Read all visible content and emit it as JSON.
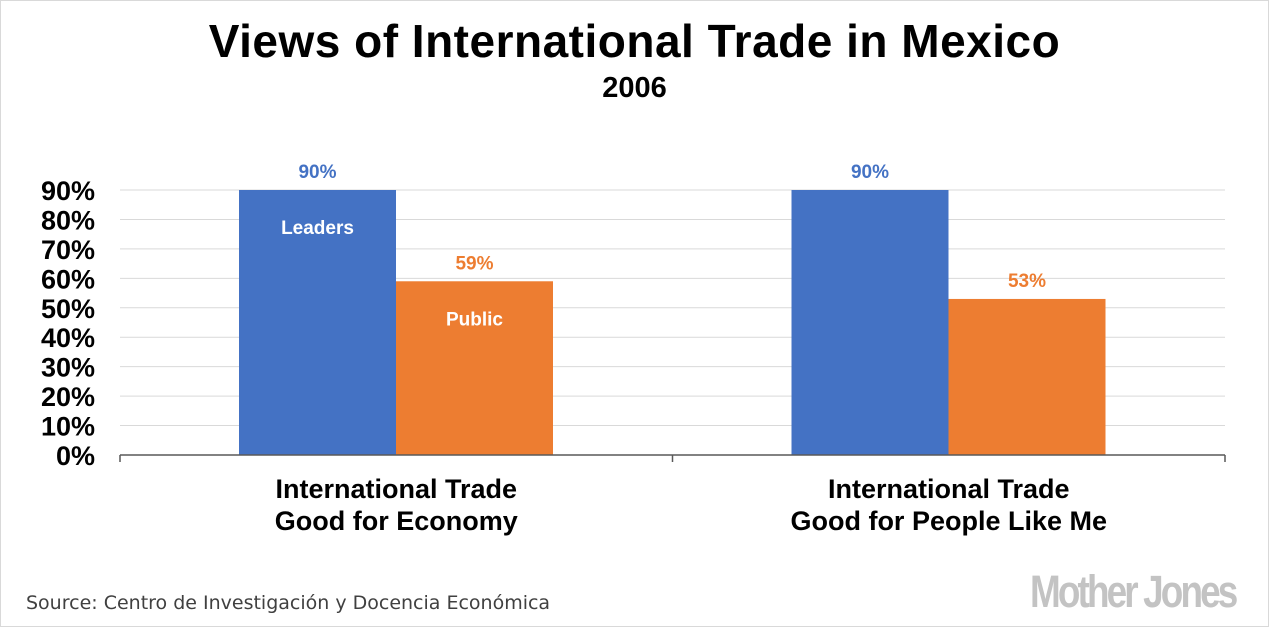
{
  "chart_data": {
    "type": "bar",
    "title": "Views of International Trade in Mexico",
    "subtitle": "2006",
    "categories": [
      [
        "International Trade",
        "Good for Economy"
      ],
      [
        "International Trade",
        "Good for People Like Me"
      ]
    ],
    "series": [
      {
        "name": "Leaders",
        "values": [
          90,
          90
        ],
        "color": "#4472c4",
        "data_labels": [
          "90%",
          "90%"
        ]
      },
      {
        "name": "Public",
        "values": [
          59,
          53
        ],
        "color": "#ed7d31",
        "data_labels": [
          "59%",
          "53%"
        ]
      }
    ],
    "ylim": [
      0,
      90
    ],
    "yticks": [
      0,
      10,
      20,
      30,
      40,
      50,
      60,
      70,
      80,
      90
    ],
    "ytick_labels": [
      "0%",
      "10%",
      "20%",
      "30%",
      "40%",
      "50%",
      "60%",
      "70%",
      "80%",
      "90%"
    ],
    "grid": true,
    "legend": "inside-bars",
    "label_color": "#ffffff",
    "gridline_color": "#d9d9d9",
    "axis_color": "#595959"
  },
  "source": "Source: Centro de Investigación y Docencia Económica",
  "logo_text": "Mother Jones"
}
